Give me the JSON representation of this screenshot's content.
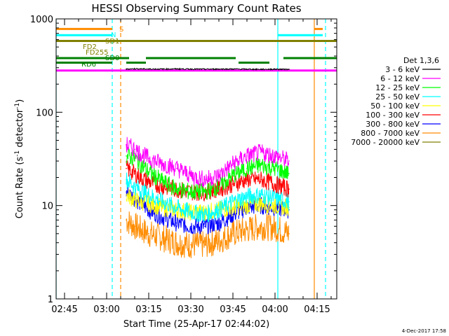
{
  "chart_data": {
    "type": "line",
    "title": "HESSI Observing Summary Count Rates",
    "xlabel": "Start Time (25-Apr-17 02:44:02)",
    "ylabel_main": "Count Rate (s",
    "ylabel_sup1": "-1",
    "ylabel_mid": " detector",
    "ylabel_sup2": "-1",
    "ylabel_end": ")",
    "yscale": "log",
    "xlim": [
      "02:42",
      "04:22"
    ],
    "ylim": [
      1,
      1000
    ],
    "x_ticks": [
      "02:45",
      "03:00",
      "03:15",
      "03:30",
      "03:45",
      "04:00",
      "04:15"
    ],
    "y_ticks": [
      {
        "value": 1,
        "label": "1"
      },
      {
        "value": 10,
        "label": "10"
      },
      {
        "value": 100,
        "label": "100"
      },
      {
        "value": 1000,
        "label": "1000"
      }
    ],
    "legend_title": "Det 1,3,6",
    "legend_position": "right",
    "series": [
      {
        "name": "3 - 6 keV",
        "color": "#000000",
        "x": [
          "03:07",
          "03:10",
          "03:15",
          "03:20",
          "03:25",
          "03:30",
          "03:35",
          "03:40",
          "03:45",
          "03:50",
          "03:55",
          "04:00",
          "04:05"
        ],
        "y": [
          290,
          292,
          290,
          290,
          291,
          290,
          289,
          290,
          290,
          289,
          288,
          289,
          288
        ]
      },
      {
        "name": "6 - 12 keV",
        "color": "#ff00ff",
        "x": [
          "03:07",
          "03:10",
          "03:15",
          "03:20",
          "03:25",
          "03:30",
          "03:35",
          "03:40",
          "03:45",
          "03:50",
          "03:55",
          "04:00",
          "04:05"
        ],
        "y": [
          45,
          40,
          32,
          28,
          25,
          21,
          19,
          21,
          28,
          34,
          37,
          34,
          30
        ]
      },
      {
        "name": "12 - 25 keV",
        "color": "#00ff00",
        "x": [
          "03:07",
          "03:10",
          "03:15",
          "03:20",
          "03:25",
          "03:30",
          "03:35",
          "03:40",
          "03:45",
          "03:50",
          "03:55",
          "04:00",
          "04:05"
        ],
        "y": [
          34,
          32,
          23,
          18,
          15,
          14,
          14,
          16,
          21,
          25,
          27,
          25,
          22
        ]
      },
      {
        "name": "25 - 50 keV",
        "color": "#00ffff",
        "x": [
          "03:07",
          "03:10",
          "03:15",
          "03:20",
          "03:25",
          "03:30",
          "03:35",
          "03:40",
          "03:45",
          "03:50",
          "03:55",
          "04:00",
          "04:05"
        ],
        "y": [
          19,
          16,
          13,
          11,
          9.5,
          8.5,
          8,
          9,
          11,
          12.5,
          13,
          12,
          11
        ]
      },
      {
        "name": "50 - 100 keV",
        "color": "#ffff00",
        "x": [
          "03:07",
          "03:10",
          "03:15",
          "03:20",
          "03:25",
          "03:30",
          "03:35",
          "03:40",
          "03:45",
          "03:50",
          "03:55",
          "04:00",
          "04:05"
        ],
        "y": [
          13,
          11.5,
          10.5,
          9.5,
          9,
          8.5,
          8.5,
          9,
          9.5,
          10,
          10.5,
          10,
          9.5
        ]
      },
      {
        "name": "100 - 300 keV",
        "color": "#ff0000",
        "x": [
          "03:07",
          "03:10",
          "03:15",
          "03:20",
          "03:25",
          "03:30",
          "03:35",
          "03:40",
          "03:45",
          "03:50",
          "03:55",
          "04:00",
          "04:05"
        ],
        "y": [
          25,
          22,
          18,
          16,
          15,
          14,
          14,
          15,
          17,
          19,
          19,
          17,
          15
        ]
      },
      {
        "name": "300 - 800 keV",
        "color": "#0000ff",
        "x": [
          "03:07",
          "03:10",
          "03:15",
          "03:20",
          "03:25",
          "03:30",
          "03:35",
          "03:40",
          "03:45",
          "03:50",
          "03:55",
          "04:00",
          "04:05"
        ],
        "y": [
          14,
          12,
          9,
          7.5,
          6.5,
          6,
          6,
          6.5,
          8,
          9.5,
          10,
          9.5,
          9
        ]
      },
      {
        "name": "800 - 7000 keV",
        "color": "#ff8c00",
        "x": [
          "03:07",
          "03:10",
          "03:15",
          "03:20",
          "03:25",
          "03:30",
          "03:35",
          "03:40",
          "03:45",
          "03:50",
          "03:55",
          "04:00",
          "04:05"
        ],
        "y": [
          7,
          6,
          5,
          4.5,
          4,
          3.8,
          3.8,
          4.2,
          5,
          5.5,
          6,
          5.8,
          5
        ]
      },
      {
        "name": "7000 - 20000 keV",
        "color": "#808000",
        "x": [],
        "y": []
      }
    ],
    "flag_bars": [
      {
        "label": "S",
        "color": "#ff8c00",
        "value": 780,
        "segments": [
          [
            "02:42",
            "03:02"
          ],
          [
            "04:14",
            "04:17"
          ]
        ]
      },
      {
        "label": "N",
        "color": "#00ffff",
        "value": 670,
        "segments": [
          [
            "02:42",
            "03:02"
          ],
          [
            "04:01",
            "04:17"
          ]
        ]
      },
      {
        "label": "SD1",
        "color": "#808000",
        "value": 580,
        "segments": [
          [
            "02:42",
            "04:22"
          ]
        ]
      },
      {
        "label": "FD2",
        "color": "#808000",
        "value": 0,
        "segments": []
      },
      {
        "label": "FD255",
        "color": "#808000",
        "value": 0,
        "segments": []
      },
      {
        "label": "SD0",
        "color": "#008000",
        "value": 380,
        "segments": [
          [
            "02:42",
            "03:08"
          ],
          [
            "03:14",
            "03:46"
          ],
          [
            "04:03",
            "04:22"
          ]
        ]
      },
      {
        "label": "RD6",
        "color": "#008000",
        "value": 340,
        "segments": [
          [
            "02:42",
            "03:02"
          ],
          [
            "03:07",
            "03:14"
          ],
          [
            "03:47",
            "03:58"
          ]
        ]
      },
      {
        "label": "",
        "color": "#ff00ff",
        "value": 280,
        "segments": [
          [
            "02:42",
            "04:22"
          ]
        ]
      }
    ],
    "vertical_lines": [
      {
        "time": "02:42",
        "color": "#00ffff",
        "style": "solid"
      },
      {
        "time": "03:02",
        "color": "#00ffff",
        "style": "dashed"
      },
      {
        "time": "03:05",
        "color": "#ff8c00",
        "style": "dashed"
      },
      {
        "time": "04:01",
        "color": "#00ffff",
        "style": "solid"
      },
      {
        "time": "04:14",
        "color": "#ff8c00",
        "style": "solid"
      },
      {
        "time": "04:18",
        "color": "#00ffff",
        "style": "dashed"
      }
    ],
    "timestamp": "4-Dec-2017 17:58"
  }
}
